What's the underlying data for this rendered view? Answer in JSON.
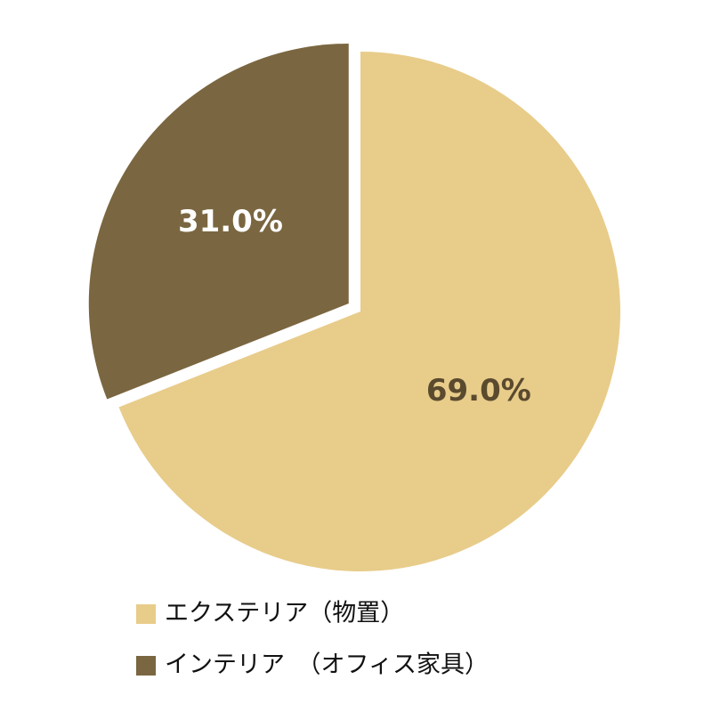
{
  "chart_data": {
    "type": "pie",
    "categories": [
      "エクステリア（物置）",
      "インテリア　（オフィス家具）"
    ],
    "values": [
      69.0,
      31.0
    ],
    "value_labels": [
      "69.0%",
      "31.0%"
    ],
    "colors": [
      "#e8cc8a",
      "#7a6640"
    ],
    "label_colors": [
      "#5a4a2e",
      "#ffffff"
    ],
    "exploded": [
      false,
      true
    ]
  }
}
